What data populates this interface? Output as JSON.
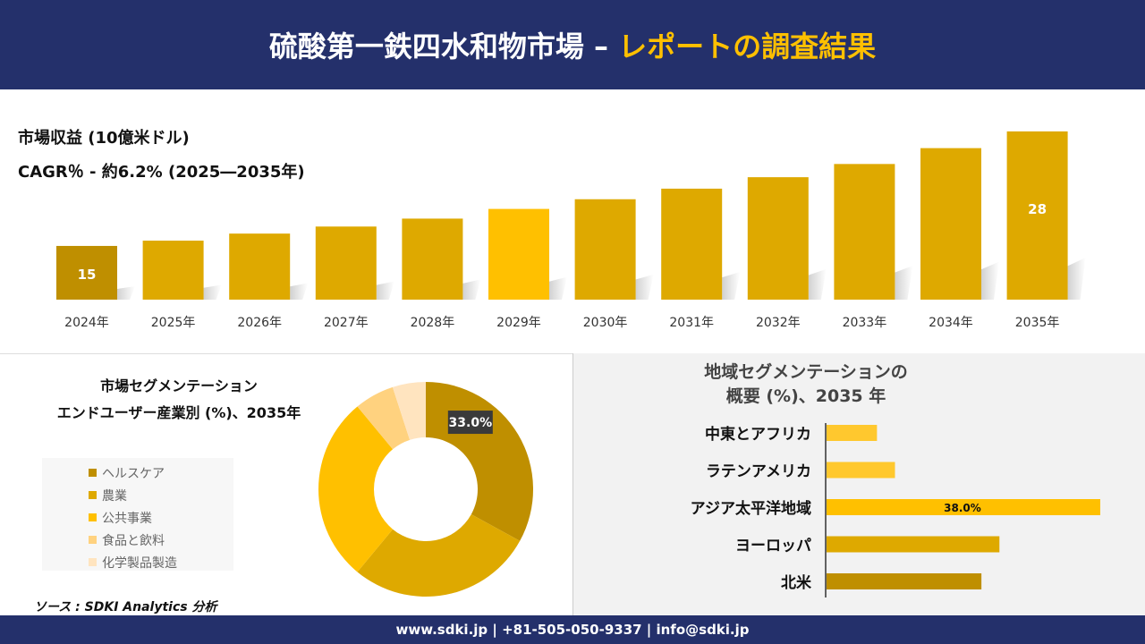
{
  "header": {
    "title_main": "硫酸第一鉄四水和物市場 –",
    "title_accent": "レポートの調査結果"
  },
  "revenue": {
    "label": "市場収益 (10億米ドル)",
    "cagr": "CAGR％ - 約6.2% (2025―2035年)"
  },
  "chart_data": [
    {
      "type": "bar",
      "categories": [
        "2024年",
        "2025年",
        "2026年",
        "2027年",
        "2028年",
        "2029年",
        "2030年",
        "2031年",
        "2032年",
        "2033年",
        "2034年",
        "2035年"
      ],
      "values": [
        15,
        15.6,
        16.4,
        17.2,
        18.1,
        19.2,
        20.3,
        21.5,
        22.8,
        24.3,
        26.1,
        28
      ],
      "data_labels": {
        "0": "15",
        "11": "28"
      },
      "colors": {
        "first": "#bf8f00",
        "highlight": "#ffc000",
        "default": "#dea900"
      },
      "highlight_index": 5
    },
    {
      "type": "pie",
      "title": [
        "市場セグメンテーション",
        "エンドユーザー産業別 (%)、2035年"
      ],
      "categories": [
        "ヘルスケア",
        "農業",
        "公共事業",
        "食品と飲料",
        "化学製品製造"
      ],
      "values": [
        33,
        28,
        28,
        6,
        5
      ],
      "data_labels": {
        "0": "33.0%"
      },
      "colors": [
        "#bf8f00",
        "#dea900",
        "#ffc000",
        "#ffd27f",
        "#ffe4bf"
      ],
      "legend": "left"
    },
    {
      "type": "bar",
      "orientation": "horizontal",
      "title": [
        "地域セグメンテーションの",
        "概要 (%)、2035 年"
      ],
      "categories": [
        "中東とアフリカ",
        "ラテンアメリカ",
        "アジア太平洋地域",
        "ヨーロッパ",
        "北米"
      ],
      "values": [
        7,
        9.5,
        38,
        24,
        21.5
      ],
      "data_labels": {
        "2": "38.0%"
      },
      "colors": [
        "#ffc82e",
        "#ffc82e",
        "#ffc000",
        "#dea900",
        "#bf8f00"
      ]
    }
  ],
  "source": "ソース : SDKI Analytics 分析",
  "footer": "www.sdki.jp | +81-505-050-9337 | info@sdki.jp"
}
